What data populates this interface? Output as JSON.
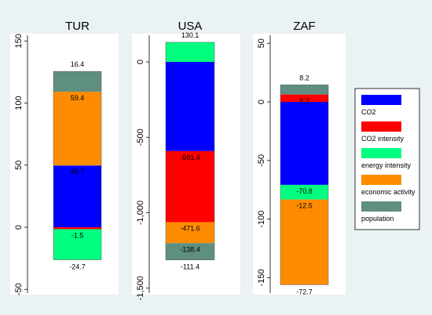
{
  "chart_data": {
    "type": "bar",
    "stacked": true,
    "legend": {
      "placement": "right",
      "entries": [
        {
          "label": "CO2",
          "color": "#0000ff"
        },
        {
          "label": "CO2 intensity",
          "color": "#ff0000"
        },
        {
          "label": "energy intensity",
          "color": "#00ff7f"
        },
        {
          "label": "economic activity",
          "color": "#ff8c00"
        },
        {
          "label": "population",
          "color": "#5f8f80"
        }
      ]
    },
    "panels": [
      {
        "title": "TUR",
        "ylim": [
          -50,
          150
        ],
        "yticks": [
          -50,
          0,
          50,
          100,
          150
        ],
        "ytick_labels": [
          "-50",
          "0",
          "50",
          "100",
          "150"
        ],
        "total_label": "16.4",
        "total_value": 16.4,
        "bars": [
          {
            "start": -26.2,
            "end": 0,
            "color": "#00ff7f",
            "label": "-24.7",
            "label_pos": "below",
            "label_y": -26.2
          },
          {
            "start": -1.5,
            "end": 0,
            "color": "#ff0000",
            "label": "-1.5",
            "label_pos": "inside",
            "label_y": -3.5
          },
          {
            "start": 0,
            "end": 49.7,
            "color": "#0000ff",
            "label": "49.7",
            "label_pos": "top",
            "label_y": 49.7
          },
          {
            "start": 49.7,
            "end": 109.1,
            "color": "#ff8c00",
            "label": "",
            "label_pos": "none",
            "label_y": 0
          },
          {
            "start": 109.1,
            "end": 125.5,
            "color": "#5f8f80",
            "label": "59.4",
            "label_pos": "top",
            "label_y": 109.1
          }
        ]
      },
      {
        "title": "USA",
        "ylim": [
          -1500,
          130.1
        ],
        "yticks": [
          -1500,
          -1000,
          -500,
          0
        ],
        "ytick_labels": [
          "-1,500",
          "-1,000",
          "-500",
          "0"
        ],
        "total_label": "130.1",
        "total_value": 130.1,
        "bars": [
          {
            "start": 0,
            "end": 130.1,
            "color": "#00ff7f",
            "label": "",
            "label_pos": "none",
            "label_y": 0
          },
          {
            "start": -591.4,
            "end": 0,
            "color": "#0000ff",
            "label": "",
            "label_pos": "none",
            "label_y": 0
          },
          {
            "start": -1063,
            "end": -591.4,
            "color": "#ff0000",
            "label": "-591.4",
            "label_pos": "top",
            "label_y": -591.4
          },
          {
            "start": -1201.4,
            "end": -1063,
            "color": "#ff8c00",
            "label": "-471.6",
            "label_pos": "top",
            "label_y": -1063
          },
          {
            "start": -1312.8,
            "end": -1201.4,
            "color": "#5f8f80",
            "label": "-138.4",
            "label_pos": "top",
            "label_y": -1201.4
          },
          {
            "start": -1312.8,
            "end": -1312.8,
            "color": "#5f8f80",
            "label": "-111.4",
            "label_pos": "below",
            "label_y": -1312.8
          }
        ]
      },
      {
        "title": "ZAF",
        "ylim": [
          -160,
          55
        ],
        "yticks": [
          -150,
          -100,
          -50,
          0,
          50
        ],
        "ytick_labels": [
          "-150",
          "-100",
          "-50",
          "0",
          "50"
        ],
        "total_label": "8.2",
        "total_value": 8.2,
        "bars": [
          {
            "start": 0,
            "end": 6.3,
            "color": "#ff0000",
            "label": "",
            "label_pos": "none",
            "label_y": 0
          },
          {
            "start": 6.3,
            "end": 14.5,
            "color": "#5f8f80",
            "label": "6.3",
            "label_pos": "top",
            "label_y": 6.3
          },
          {
            "start": -70.8,
            "end": 0,
            "color": "#0000ff",
            "label": "",
            "label_pos": "none",
            "label_y": 0
          },
          {
            "start": -83.3,
            "end": -70.8,
            "color": "#00ff7f",
            "label": "-70.8",
            "label_pos": "top",
            "label_y": -70.8
          },
          {
            "start": -156,
            "end": -83.3,
            "color": "#ff8c00",
            "label": "-12.5",
            "label_pos": "top",
            "label_y": -83.3
          },
          {
            "start": -156,
            "end": -156,
            "color": "#ff8c00",
            "label": "-72.7",
            "label_pos": "below",
            "label_y": -156
          }
        ]
      }
    ]
  }
}
